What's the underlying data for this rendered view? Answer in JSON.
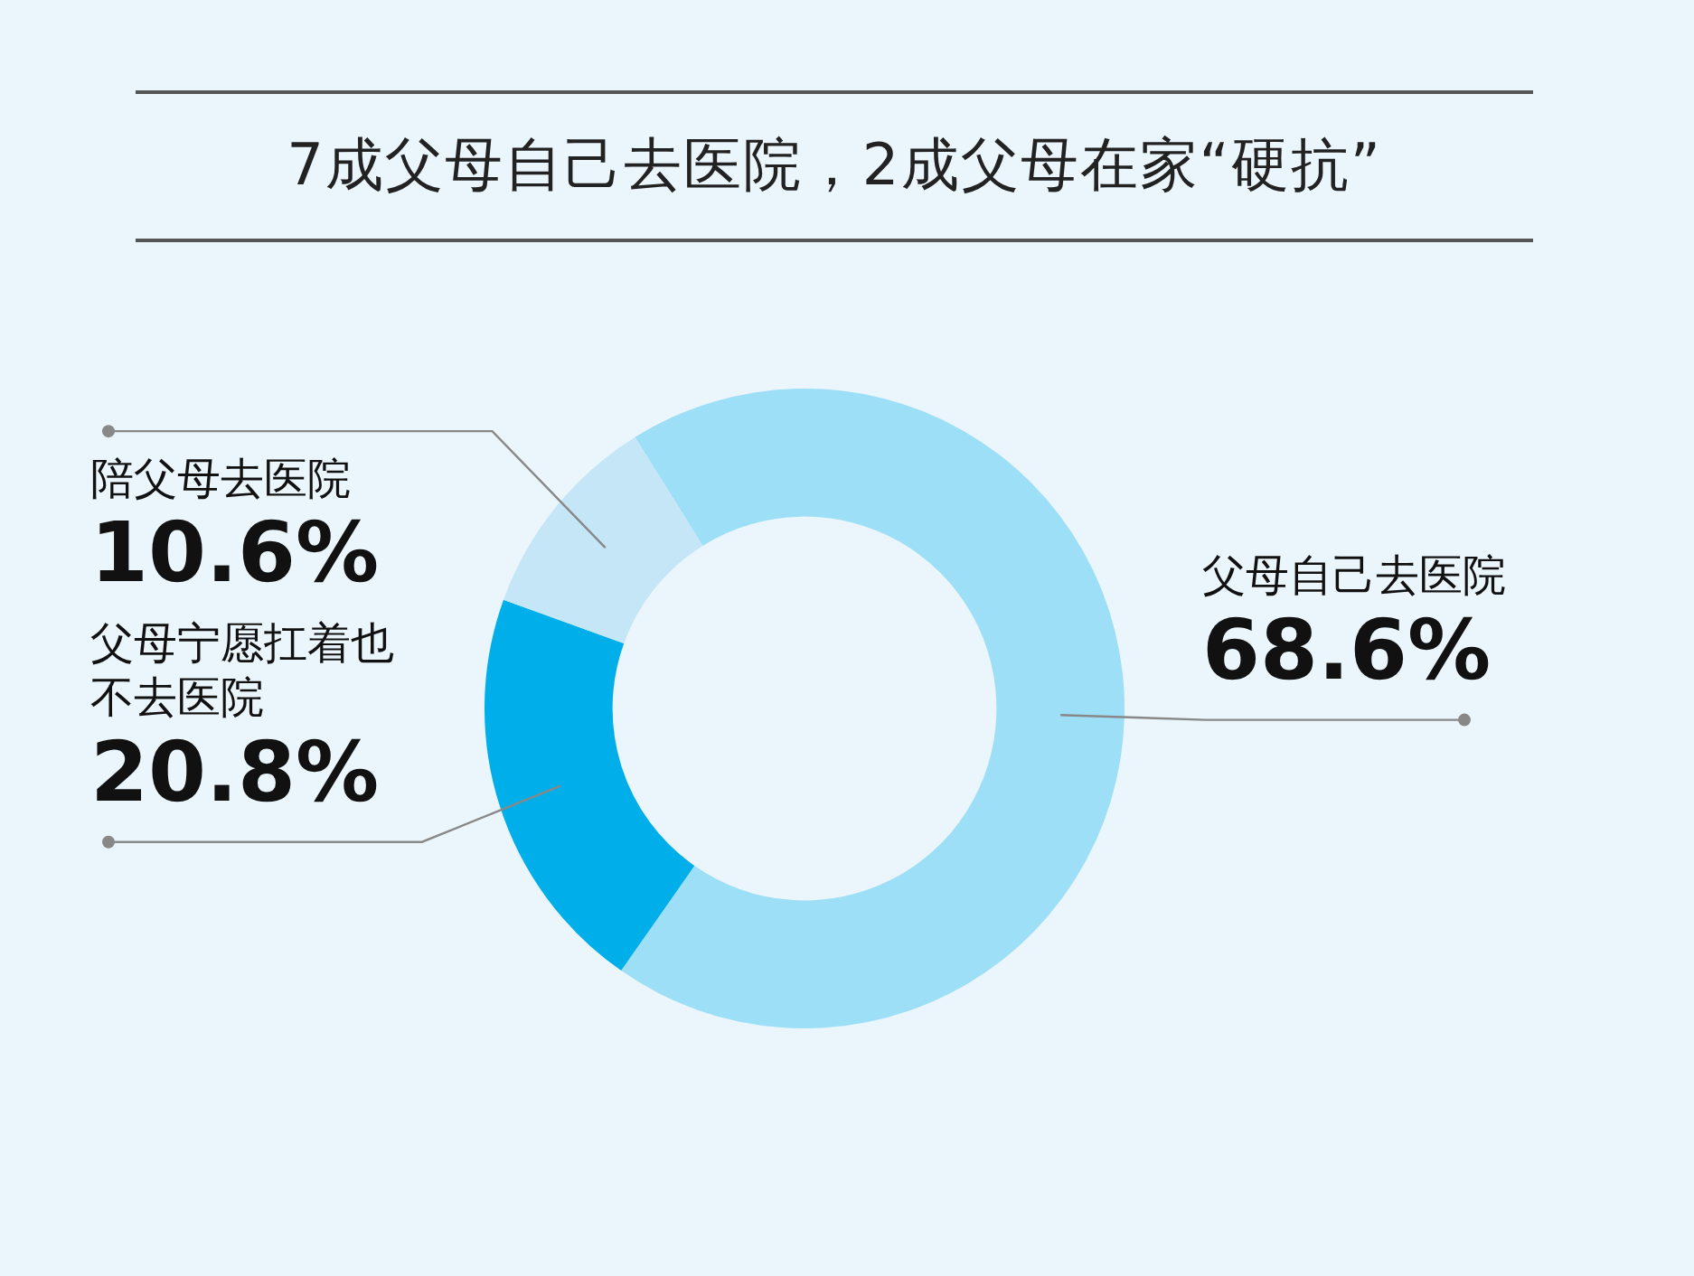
{
  "chart_data": {
    "type": "donut",
    "title": "7成父母自己去医院，2成父母在家“硬抗”",
    "categories": [
      "父母自己去医院",
      "父母宁愿扛着也不去医院",
      "陪父母去医院"
    ],
    "values": [
      68.6,
      20.8,
      10.6
    ],
    "colors": [
      "#9ddff7",
      "#00aeea",
      "#c5e6f7"
    ],
    "value_labels": [
      "68.6%",
      "20.8%",
      "10.6%"
    ],
    "legend": false
  }
}
